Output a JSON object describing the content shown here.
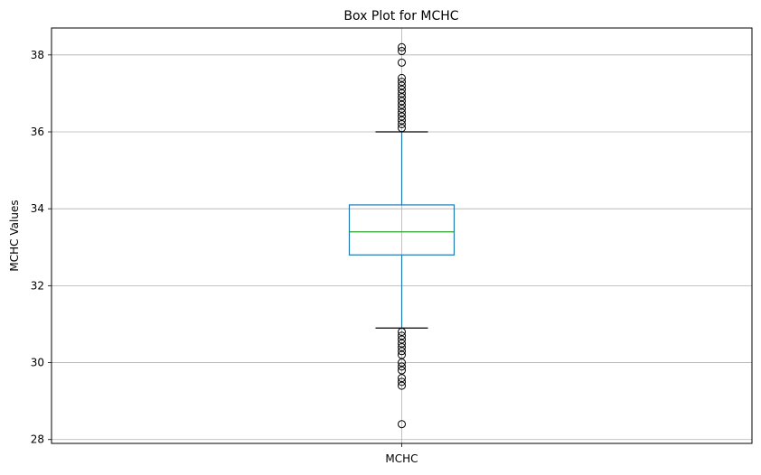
{
  "chart_data": {
    "type": "box",
    "title": "Box Plot for MCHC",
    "xlabel": "",
    "ylabel": "MCHC Values",
    "categories": [
      "MCHC"
    ],
    "ylim": [
      27.9,
      38.7
    ],
    "yticks": [
      28,
      30,
      32,
      34,
      36,
      38
    ],
    "grid": true,
    "box": {
      "whisker_low": 30.9,
      "q1": 32.8,
      "median": 33.4,
      "q3": 34.1,
      "whisker_high": 36.0
    },
    "outliers": [
      38.2,
      38.1,
      37.8,
      37.4,
      37.3,
      37.2,
      37.1,
      37.0,
      36.9,
      36.8,
      36.7,
      36.6,
      36.5,
      36.4,
      36.3,
      36.2,
      36.1,
      30.8,
      30.7,
      30.6,
      30.5,
      30.4,
      30.3,
      30.2,
      30.0,
      29.9,
      29.8,
      29.6,
      29.5,
      29.4,
      28.4
    ],
    "colors": {
      "box": "#1f77b4",
      "median": "#2ca02c",
      "caps": "#000000",
      "outlier": "#000000",
      "grid": "#b0b0b0"
    }
  }
}
